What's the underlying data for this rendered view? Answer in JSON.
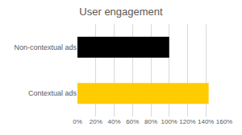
{
  "chart_data": {
    "type": "bar",
    "title": "User engagement",
    "orientation": "horizontal",
    "categories": [
      "Non-contextual ads",
      "Contextual ads"
    ],
    "values": [
      100,
      143
    ],
    "colors": [
      "#000000",
      "#ffcc00"
    ],
    "xlim": [
      0,
      160
    ],
    "xticks": [
      {
        "value": 0,
        "label": "0%"
      },
      {
        "value": 20,
        "label": "20%"
      },
      {
        "value": 40,
        "label": "40%"
      },
      {
        "value": 60,
        "label": "60%"
      },
      {
        "value": 80,
        "label": "80%"
      },
      {
        "value": 100,
        "label": "100%"
      },
      {
        "value": 120,
        "label": "120%"
      },
      {
        "value": 140,
        "label": "140%"
      },
      {
        "value": 160,
        "label": "160%"
      }
    ],
    "grid": true
  }
}
